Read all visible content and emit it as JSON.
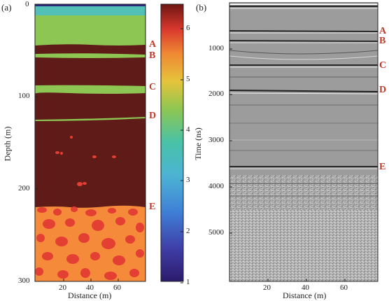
{
  "panel_a": {
    "label": "(a)",
    "ylabel": "Depth (m)",
    "xlabel": "Distance (m)",
    "y_ticks": [
      "0",
      "100",
      "200",
      "300"
    ],
    "x_ticks": [
      "20",
      "40",
      "60"
    ],
    "markers": [
      "A",
      "B",
      "C",
      "D",
      "E"
    ],
    "colorbar_ticks": [
      "1",
      "2",
      "3",
      "4",
      "5",
      "6"
    ]
  },
  "panel_b": {
    "label": "(b)",
    "ylabel": "Time (ns)",
    "xlabel": "Distance (m)",
    "y_ticks": [
      "1000",
      "2000",
      "3000",
      "4000",
      "5000"
    ],
    "x_ticks": [
      "20",
      "40",
      "60"
    ],
    "markers": [
      "A",
      "B",
      "C",
      "D",
      "E"
    ]
  },
  "colors": {
    "green": "#8dc653",
    "dark_red": "#5e1b18",
    "orange": "#f58b3a",
    "red_blob": "#e43f33",
    "marker": "#c0392b"
  }
}
